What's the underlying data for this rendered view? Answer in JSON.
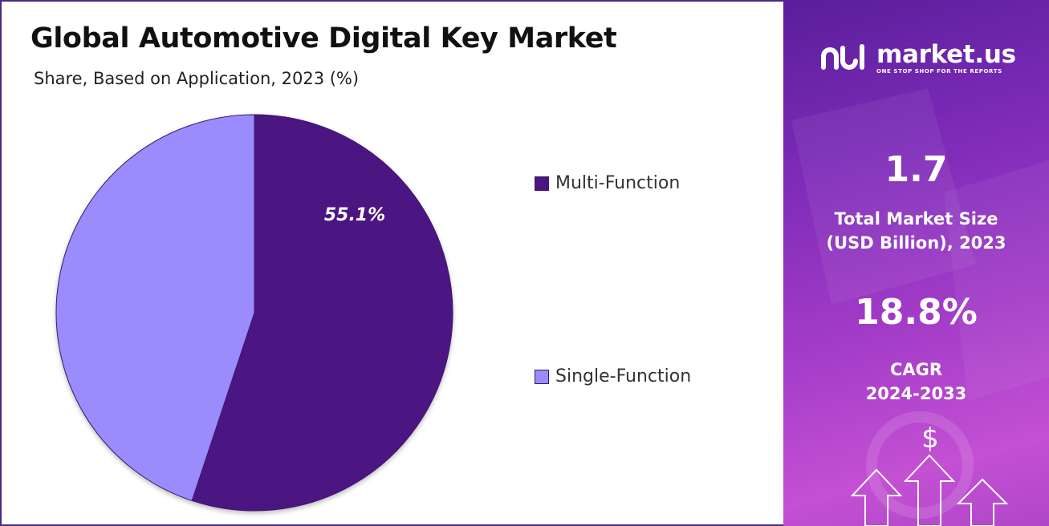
{
  "header": {
    "title": "Global Automotive Digital Key Market",
    "subtitle": "Share, Based on Application, 2023 (%)"
  },
  "chart_data": {
    "type": "pie",
    "title": "Global Automotive Digital Key Market",
    "subtitle": "Share, Based on Application, 2023 (%)",
    "categories": [
      "Multi-Function",
      "Single-Function"
    ],
    "values": [
      55.1,
      44.9
    ],
    "data_labels": [
      "55.1%",
      ""
    ],
    "colors": [
      "#4b1581",
      "#9a8cfc"
    ],
    "legend_position": "right"
  },
  "brand": {
    "name": "market.us",
    "tagline": "ONE STOP SHOP FOR THE REPORTS"
  },
  "stats": {
    "market_size_value": "1.7",
    "market_size_caption_line1": "Total Market Size",
    "market_size_caption_line2": "(USD Billion), 2023",
    "cagr_value": "18.8%",
    "cagr_caption_line1": "CAGR",
    "cagr_caption_line2": "2024-2033"
  },
  "icons": {
    "dollar_symbol": "$"
  }
}
